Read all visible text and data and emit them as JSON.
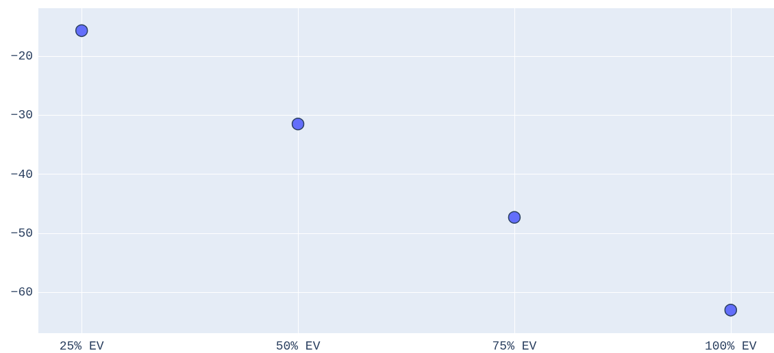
{
  "chart_data": {
    "type": "scatter",
    "categories": [
      "25% EV",
      "50% EV",
      "75% EV",
      "100% EV"
    ],
    "series": [
      {
        "color": "#636efa",
        "values": [
          -15.7,
          -31.5,
          -47.3,
          -63.0
        ]
      }
    ],
    "ylim": [
      -66.9,
      -11.9
    ],
    "yticks": [
      -20,
      -30,
      -40,
      -50,
      -60
    ],
    "grid": true,
    "marker": "circle"
  }
}
